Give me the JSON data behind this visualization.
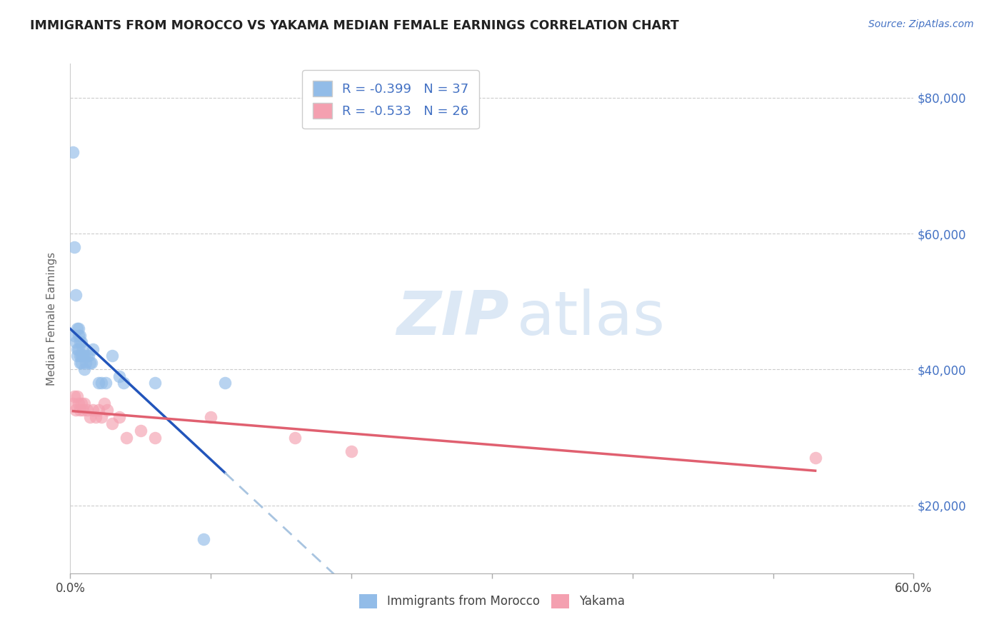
{
  "title": "IMMIGRANTS FROM MOROCCO VS YAKAMA MEDIAN FEMALE EARNINGS CORRELATION CHART",
  "source_text": "Source: ZipAtlas.com",
  "ylabel": "Median Female Earnings",
  "xlim": [
    0.0,
    0.6
  ],
  "ylim": [
    10000,
    85000
  ],
  "morocco_x": [
    0.002,
    0.003,
    0.003,
    0.004,
    0.004,
    0.005,
    0.005,
    0.005,
    0.006,
    0.006,
    0.006,
    0.007,
    0.007,
    0.007,
    0.007,
    0.008,
    0.008,
    0.008,
    0.009,
    0.009,
    0.01,
    0.01,
    0.011,
    0.012,
    0.013,
    0.014,
    0.015,
    0.016,
    0.02,
    0.022,
    0.025,
    0.03,
    0.035,
    0.038,
    0.06,
    0.095,
    0.11
  ],
  "morocco_y": [
    72000,
    58000,
    45000,
    51000,
    44000,
    46000,
    43000,
    42000,
    46000,
    45000,
    43000,
    45000,
    44000,
    42000,
    41000,
    44000,
    42000,
    41000,
    43000,
    42000,
    42000,
    40000,
    41000,
    42000,
    42000,
    41000,
    41000,
    43000,
    38000,
    38000,
    38000,
    42000,
    39000,
    38000,
    38000,
    15000,
    38000
  ],
  "morocco_color": "#92bce8",
  "morocco_R": -0.399,
  "morocco_N": 37,
  "yakama_x": [
    0.002,
    0.003,
    0.004,
    0.005,
    0.006,
    0.007,
    0.008,
    0.009,
    0.01,
    0.012,
    0.014,
    0.016,
    0.018,
    0.02,
    0.022,
    0.024,
    0.026,
    0.03,
    0.035,
    0.04,
    0.05,
    0.06,
    0.1,
    0.16,
    0.2,
    0.53
  ],
  "yakama_y": [
    35000,
    36000,
    34000,
    36000,
    35000,
    34000,
    35000,
    34000,
    35000,
    34000,
    33000,
    34000,
    33000,
    34000,
    33000,
    35000,
    34000,
    32000,
    33000,
    30000,
    31000,
    30000,
    33000,
    30000,
    28000,
    27000
  ],
  "yakama_color": "#f4a0b0",
  "yakama_R": -0.533,
  "yakama_N": 26,
  "legend_label1": "Immigrants from Morocco",
  "legend_label2": "Yakama",
  "blue_line_color": "#2255bb",
  "pink_line_color": "#e06070",
  "dashed_line_color": "#a8c4e0",
  "watermark_color": "#dce8f5",
  "grid_color": "#cccccc",
  "title_color": "#222222",
  "source_color": "#4472c4",
  "axis_label_color": "#666666",
  "right_tick_color": "#4472c4",
  "background_color": "#ffffff",
  "xtick_show": [
    0.0,
    0.6
  ],
  "xtick_labels_show": [
    "0.0%",
    "60.0%"
  ],
  "ytick_pos": [
    20000,
    40000,
    60000,
    80000
  ],
  "ytick_labels_right": [
    "$20,000",
    "$40,000",
    "$60,000",
    "$80,000"
  ]
}
